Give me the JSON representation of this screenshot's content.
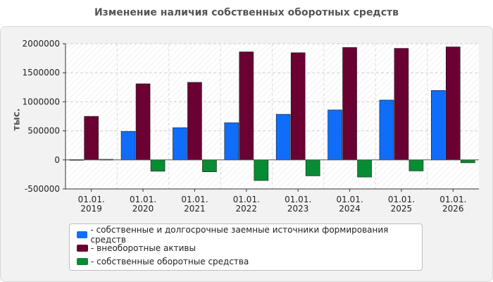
{
  "chart_data": {
    "type": "bar",
    "title": "Изменение наличия собственных оборотных средств",
    "ylabel": "тыс.",
    "xlabel": "",
    "categories": [
      [
        "01.01.",
        "2019"
      ],
      [
        "01.01.",
        "2020"
      ],
      [
        "01.01.",
        "2021"
      ],
      [
        "01.01.",
        "2022"
      ],
      [
        "01.01.",
        "2023"
      ],
      [
        "01.01.",
        "2024"
      ],
      [
        "01.01.",
        "2025"
      ],
      [
        "01.01.",
        "2026"
      ]
    ],
    "ylim": [
      -500000,
      2000000
    ],
    "yticks": [
      2000000,
      1500000,
      1000000,
      500000,
      0,
      -500000
    ],
    "grid": true,
    "legend_position": "bottom",
    "series": [
      {
        "name": "- собственные и долгосрочные заемные источники формирования средств",
        "color": "#0f6dfa",
        "values": [
          5000,
          490000,
          555000,
          640000,
          785000,
          860000,
          1030000,
          1195000
        ]
      },
      {
        "name": "- внеоборотные активы",
        "color": "#6b0033",
        "values": [
          750000,
          1310000,
          1335000,
          1860000,
          1845000,
          1935000,
          1920000,
          1945000
        ]
      },
      {
        "name": "- собственные оборотные средства",
        "color": "#078c33",
        "values": [
          10000,
          -195000,
          -205000,
          -355000,
          -275000,
          -295000,
          -190000,
          -50000
        ]
      }
    ]
  }
}
